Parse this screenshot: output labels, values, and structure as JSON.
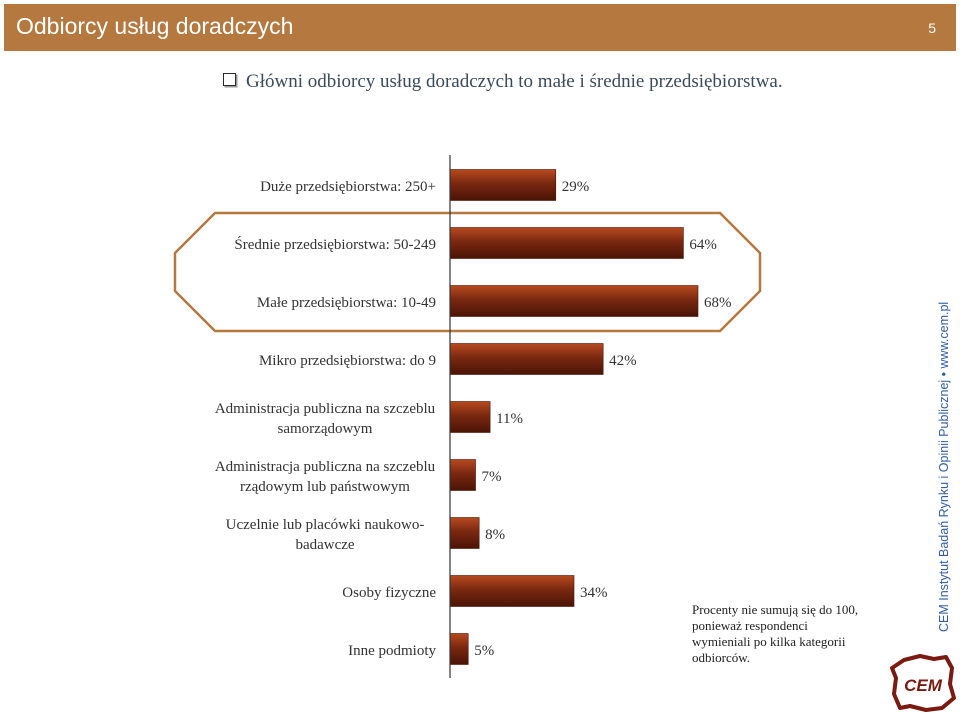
{
  "header": {
    "title": "Odbiorcy usług doradczych",
    "page_number": "5"
  },
  "bullet": {
    "text": "Główni odbiorcy usług doradczych to małe i średnie przedsiębiorstwa."
  },
  "note": {
    "text": "Procenty nie sumują się do 100, ponieważ respondenci wymieniali po kilka kategorii odbiorców."
  },
  "watermark": {
    "text": "CEM Instytut Badań Rynku i Opinii Publicznej • www.cem.pl"
  },
  "logo": {
    "text": "CEM"
  },
  "colors": {
    "header": "#b5783e",
    "bar": "#7a2810",
    "highlight_border": "#b5783e"
  },
  "chart_data": {
    "type": "bar",
    "orientation": "horizontal",
    "categories": [
      "Duże przedsiębiorstwa: 250+",
      "Średnie przedsiębiorstwa: 50-249",
      "Małe przedsiębiorstwa: 10-49",
      "Mikro przedsiębiorstwa: do 9",
      "Administracja publiczna na szczeblu samorządowym",
      "Administracja publiczna na szczeblu rządowym lub państwowym",
      "Uczelnie lub placówki naukowo-badawcze",
      "Osoby fizyczne",
      "Inne podmioty"
    ],
    "category_lines": [
      [
        "Duże przedsiębiorstwa: 250+"
      ],
      [
        "Średnie przedsiębiorstwa: 50-249"
      ],
      [
        "Małe przedsiębiorstwa: 10-49"
      ],
      [
        "Mikro przedsiębiorstwa: do 9"
      ],
      [
        "Administracja publiczna na szczeblu",
        "samorządowym"
      ],
      [
        "Administracja publiczna na szczeblu",
        "rządowym lub państwowym"
      ],
      [
        "Uczelnie lub placówki naukowo-",
        "badawcze"
      ],
      [
        "Osoby fizyczne"
      ],
      [
        "Inne podmioty"
      ]
    ],
    "values": [
      29,
      64,
      68,
      42,
      11,
      7,
      8,
      34,
      5
    ],
    "value_labels": [
      "29%",
      "64%",
      "68%",
      "42%",
      "11%",
      "7%",
      "8%",
      "34%",
      "5%"
    ],
    "highlighted": [
      1,
      2
    ],
    "xlim": [
      0,
      68
    ],
    "grid": false,
    "legend": "none"
  }
}
